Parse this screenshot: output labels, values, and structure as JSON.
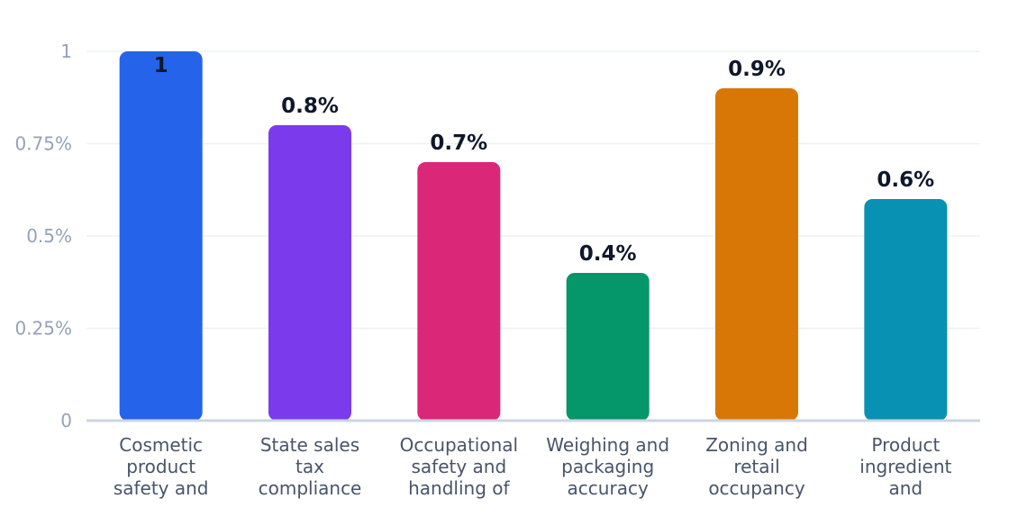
{
  "chart_data": {
    "type": "bar",
    "title": "",
    "xlabel": "",
    "ylabel": "",
    "ylim": [
      0,
      1
    ],
    "yticks": [
      {
        "value": 0,
        "label": "0"
      },
      {
        "value": 0.25,
        "label": "0.25%"
      },
      {
        "value": 0.5,
        "label": "0.5%"
      },
      {
        "value": 0.75,
        "label": "0.75%"
      },
      {
        "value": 1,
        "label": "1"
      }
    ],
    "grid": true,
    "categories": [
      [
        "Cosmetic",
        "product",
        "safety and"
      ],
      [
        "State sales",
        "tax",
        "compliance"
      ],
      [
        "Occupational",
        "safety and",
        "handling of"
      ],
      [
        "Weighing and",
        "packaging",
        "accuracy"
      ],
      [
        "Zoning and",
        "retail",
        "occupancy"
      ],
      [
        "Product",
        "ingredient",
        "and"
      ]
    ],
    "values": [
      1,
      0.8,
      0.7,
      0.4,
      0.9,
      0.6
    ],
    "data_labels": [
      "1",
      "0.8%",
      "0.7%",
      "0.4%",
      "0.9%",
      "0.6%"
    ],
    "colors": [
      "#2563eb",
      "#7c3aed",
      "#db2777",
      "#059669",
      "#d97706",
      "#0891b2"
    ]
  }
}
